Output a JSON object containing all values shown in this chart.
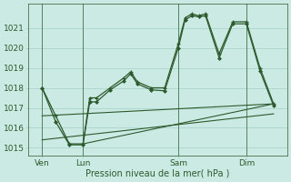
{
  "background_color": "#cceae4",
  "grid_color": "#b0d8d0",
  "line_color": "#2d5a2d",
  "xlabel": "Pression niveau de la mer( hPa )",
  "ylim": [
    1014.6,
    1022.2
  ],
  "yticks": [
    1015,
    1016,
    1017,
    1018,
    1019,
    1020,
    1021
  ],
  "xlim": [
    0,
    19
  ],
  "xtick_labels": [
    "Ven",
    "Lun",
    "Sam",
    "Dim"
  ],
  "xtick_positions": [
    1,
    4,
    11,
    16
  ],
  "vlines": [
    1,
    4,
    11,
    16
  ],
  "series1_x": [
    1,
    2,
    3,
    4,
    4.5,
    5,
    6,
    7,
    7.5,
    8,
    9,
    10,
    11,
    11.5,
    12,
    12.5,
    13,
    14,
    15,
    16,
    17,
    18
  ],
  "series1_y": [
    1018.0,
    1016.6,
    1015.2,
    1015.2,
    1017.5,
    1017.5,
    1018.0,
    1018.5,
    1018.8,
    1018.3,
    1018.0,
    1018.0,
    1020.2,
    1021.5,
    1021.7,
    1021.6,
    1021.7,
    1019.7,
    1021.3,
    1021.3,
    1019.0,
    1017.2
  ],
  "series2_x": [
    1,
    2,
    3,
    4,
    4.5,
    5,
    6,
    7,
    7.5,
    8,
    9,
    10,
    11,
    11.5,
    12,
    12.5,
    13,
    14,
    15,
    16,
    17,
    18
  ],
  "series2_y": [
    1018.0,
    1016.3,
    1015.15,
    1015.15,
    1017.3,
    1017.3,
    1017.9,
    1018.35,
    1018.7,
    1018.2,
    1017.9,
    1017.85,
    1020.0,
    1021.4,
    1021.6,
    1021.55,
    1021.6,
    1019.5,
    1021.2,
    1021.2,
    1018.85,
    1017.1
  ],
  "series3_x": [
    1,
    18
  ],
  "series3_y": [
    1016.6,
    1017.2
  ],
  "series4_x": [
    4,
    18
  ],
  "series4_y": [
    1015.2,
    1017.2
  ],
  "series5_x": [
    1,
    18
  ],
  "series5_y": [
    1015.4,
    1016.7
  ]
}
